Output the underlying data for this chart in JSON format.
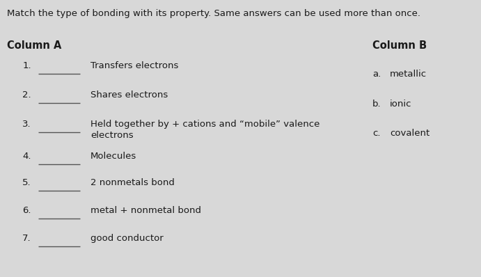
{
  "title": "Match the type of bonding with its property. Same answers can be used more than once.",
  "col_a_header": "Column A",
  "col_b_header": "Column B",
  "background_color": "#d8d8d8",
  "items": [
    {
      "num": "1.",
      "text": "Transfers electrons"
    },
    {
      "num": "2.",
      "text": "Shares electrons"
    },
    {
      "num": "3.",
      "text": "Held together by + cations and “mobile” valence\nelectrons"
    },
    {
      "num": "4.",
      "text": "Molecules"
    },
    {
      "num": "5.",
      "text": "2 nonmetals bond"
    },
    {
      "num": "6.",
      "text": "metal + nonmetal bond"
    },
    {
      "num": "7.",
      "text": "good conductor"
    }
  ],
  "col_b_items": [
    {
      "label": "a.",
      "text": "metallic"
    },
    {
      "label": "b.",
      "text": "ionic"
    },
    {
      "label": "c.",
      "text": "covalent"
    }
  ],
  "title_fontsize": 9.5,
  "header_fontsize": 10.5,
  "item_fontsize": 9.5,
  "text_color": "#1a1a1a",
  "fig_width": 6.91,
  "fig_height": 3.98,
  "dpi": 100
}
